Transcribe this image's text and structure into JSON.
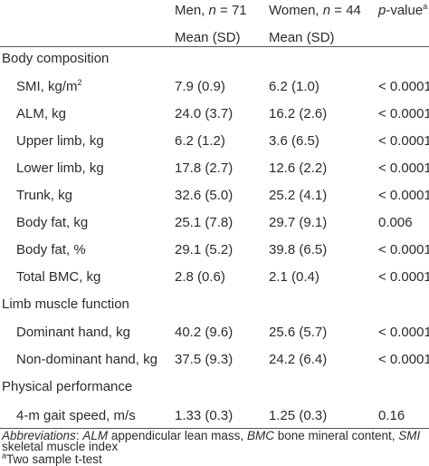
{
  "header": {
    "men_line1": "Men, ",
    "men_n": "n",
    "men_rest": " = 71",
    "women_line1": "Women, ",
    "women_n": "n",
    "women_rest": " = 44",
    "p_label": "p",
    "p_rest": "-value",
    "p_sup": "a",
    "men_line2": "Mean (SD)",
    "women_line2": "Mean (SD)"
  },
  "sections": {
    "body_composition": "Body composition",
    "limb_muscle_function": "Limb muscle function",
    "physical_performance": "Physical performance"
  },
  "rows": [
    {
      "label": "SMI, kg/m",
      "label_sup": "2",
      "men": "7.9 (0.9)",
      "women": "6.2 (1.0)",
      "p": "< 0.0001"
    },
    {
      "label": "ALM, kg",
      "men": "24.0 (3.7)",
      "women": "16.2 (2.6)",
      "p": "< 0.0001"
    },
    {
      "label": "Upper limb, kg",
      "men": "6.2 (1.2)",
      "women": "3.6 (6.5)",
      "p": "< 0.0001"
    },
    {
      "label": "Lower limb, kg",
      "men": "17.8 (2.7)",
      "women": "12.6 (2.2)",
      "p": "< 0.0001"
    },
    {
      "label": "Trunk, kg",
      "men": "32.6 (5.0)",
      "women": "25.2 (4.1)",
      "p": "< 0.0001"
    },
    {
      "label": "Body fat, kg",
      "men": "25.1 (7.8)",
      "women": "29.7 (9.1)",
      "p": "0.006"
    },
    {
      "label": "Body fat, %",
      "men": "29.1 (5.2)",
      "women": "39.8 (6.5)",
      "p": "< 0.0001"
    },
    {
      "label": "Total BMC, kg",
      "men": "2.8 (0.6)",
      "women": "2.1 (0.4)",
      "p": "< 0.0001"
    },
    {
      "label": "Dominant hand, kg",
      "men": "40.2 (9.6)",
      "women": "25.6 (5.7)",
      "p": "< 0.0001"
    },
    {
      "label": "Non-dominant hand, kg",
      "men": "37.5 (9.3)",
      "women": "24.2 (6.4)",
      "p": "< 0.0001"
    },
    {
      "label": "4-m gait speed, m/s",
      "men": "1.33 (0.3)",
      "women": "1.25 (0.3)",
      "p": "0.16"
    }
  ],
  "footnotes": {
    "abbr_label": "Abbreviations",
    "abbr_sep": ": ",
    "alm": "ALM",
    "alm_def": " appendicular lean mass, ",
    "bmc": "BMC",
    "bmc_def": " bone mineral content, ",
    "smi": "SMI",
    "smi_def": "skeletal muscle index",
    "note_sup": "a",
    "note_text": "Two sample t-test"
  }
}
